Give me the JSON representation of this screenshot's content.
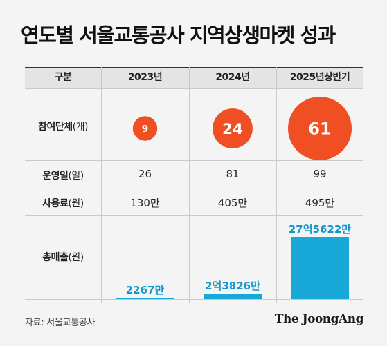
{
  "title": "연도별 서울교통공사 지역상생마켓 성과",
  "table_header": {
    "col0": "구분",
    "col1": "2023년",
    "col2": "2024년",
    "col3": "2025년상반기"
  },
  "rows": {
    "participants": {
      "bold": "참여단체",
      "unit": "(개)"
    },
    "operating_days": {
      "bold": "운영일",
      "unit": "(일)"
    },
    "usage_fee": {
      "bold": "사용료",
      "unit": "(원)"
    },
    "total_sales": {
      "bold": "총매출",
      "unit": "(원)"
    }
  },
  "chart_data": {
    "type": "table",
    "columns": [
      "2023년",
      "2024년",
      "2025년상반기"
    ],
    "participants": {
      "values": [
        9,
        24,
        61
      ],
      "labels": [
        "9",
        "24",
        "61"
      ]
    },
    "operating_days": {
      "values": [
        26,
        81,
        99
      ],
      "labels": [
        "26",
        "81",
        "99"
      ]
    },
    "usage_fee": {
      "labels": [
        "130만",
        "405만",
        "495만"
      ]
    },
    "total_sales": {
      "values_10k_won": [
        2267,
        23826,
        275622
      ],
      "labels": [
        "2267만",
        "2억3826만",
        "27억5622만"
      ]
    },
    "bubble_color": "#f04e23",
    "bar_color": "#18a8d8",
    "bar_label_color": "#1396c9"
  },
  "source": "자료: 서울교통공사",
  "logo": "The JoongAng"
}
